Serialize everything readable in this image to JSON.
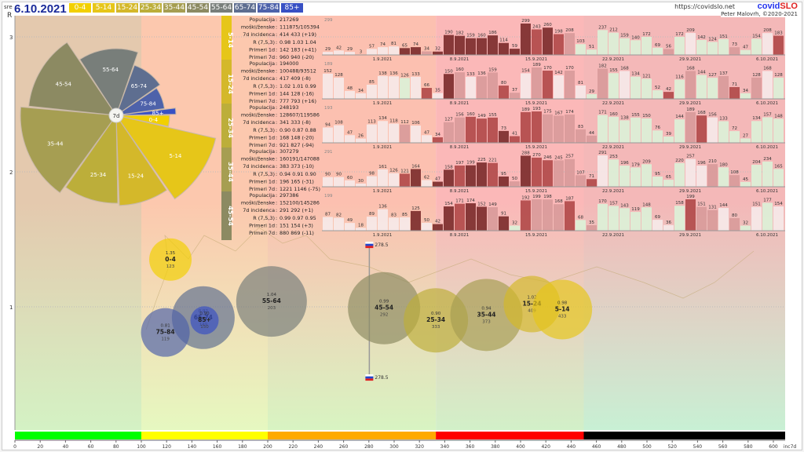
{
  "header": {
    "weekday": "sre",
    "date": "6.10.2021",
    "url": "https://covidslo.net",
    "logo_a": "covid",
    "logo_b": "SLO",
    "author": "Peter Malovrh, ©2020-2021",
    "r_axis": "R"
  },
  "age_groups": [
    {
      "label": "0-4",
      "color": "#f2d000"
    },
    {
      "label": "5-14",
      "color": "#e6c619"
    },
    {
      "label": "15-24",
      "color": "#d4b82a"
    },
    {
      "label": "25-34",
      "color": "#bcae3a"
    },
    {
      "label": "35-44",
      "color": "#a69e52"
    },
    {
      "label": "45-54",
      "color": "#8c8a62"
    },
    {
      "label": "55-64",
      "color": "#787e7a"
    },
    {
      "label": "65-74",
      "color": "#5e6e90"
    },
    {
      "label": "75-84",
      "color": "#4e62aa"
    },
    {
      "label": "85+",
      "color": "#3850c4"
    }
  ],
  "chart_data": [
    {
      "type": "bar",
      "title": "daily cases per age group",
      "date_ticks": [
        "1.9.2021",
        "8.9.2021",
        "15.9.2021",
        "22.9.2021",
        "29.9.2021",
        "6.10.2021"
      ],
      "panels": [
        {
          "group": "5-14",
          "max": "299",
          "stats": [
            [
              "Populacija",
              "217269"
            ],
            [
              "moški/ženske",
              "111875/105394"
            ],
            [
              "7d incidenca",
              "414 433 (+19)"
            ],
            [
              "R (7,5,3)",
              "0.98 1.03 1.04"
            ],
            [
              "Primeri 1d",
              "142 183 (+41)"
            ],
            [
              "Primeri 7d",
              "960 940 (-20)"
            ]
          ],
          "values": [
            29,
            42,
            29,
            3,
            57,
            74,
            81,
            65,
            74,
            34,
            32,
            190,
            182,
            159,
            160,
            186,
            114,
            59,
            299,
            243,
            260,
            198,
            208,
            103,
            51,
            237,
            212,
            159,
            140,
            172,
            69,
            56,
            172,
            209,
            142,
            124,
            151,
            73,
            47,
            154,
            208,
            183
          ]
        },
        {
          "group": "15-24",
          "max": "189",
          "stats": [
            [
              "Populacija",
              "194000"
            ],
            [
              "moški/ženske",
              "100488/93512"
            ],
            [
              "7d incidenca",
              "417 409 (-8)"
            ],
            [
              "R (7,5,3)",
              "1.02 1.01 0.99"
            ],
            [
              "Primeri 1d",
              "144 128 (-16)"
            ],
            [
              "Primeri 7d",
              "777 793 (+16)"
            ]
          ],
          "values": [
            152,
            128,
            48,
            34,
            85,
            138,
            136,
            126,
            133,
            66,
            35,
            150,
            160,
            133,
            136,
            159,
            80,
            37,
            154,
            189,
            170,
            142,
            170,
            81,
            29,
            182,
            155,
            168,
            134,
            121,
            52,
            42,
            116,
            168,
            144,
            127,
            137,
            71,
            34,
            128,
            168,
            128
          ]
        },
        {
          "group": "25-34",
          "max": "193",
          "stats": [
            [
              "Populacija",
              "248193"
            ],
            [
              "moški/ženske",
              "128607/119586"
            ],
            [
              "7d incidenca",
              "341 333 (-8)"
            ],
            [
              "R (7,5,3)",
              "0.90 0.87 0.88"
            ],
            [
              "Primeri 1d",
              "168 148 (-20)"
            ],
            [
              "Primeri 7d",
              "921 827 (-94)"
            ]
          ],
          "values": [
            94,
            108,
            47,
            26,
            113,
            134,
            118,
            112,
            106,
            47,
            34,
            127,
            156,
            160,
            149,
            155,
            73,
            41,
            189,
            193,
            175,
            167,
            174,
            83,
            44,
            171,
            160,
            138,
            155,
            150,
            76,
            39,
            144,
            189,
            168,
            156,
            133,
            72,
            27,
            134,
            157,
            148
          ]
        },
        {
          "group": "35-44",
          "max": "291",
          "stats": [
            [
              "Populacija",
              "307279"
            ],
            [
              "moški/ženske",
              "160191/147088"
            ],
            [
              "7d incidenca",
              "383 373 (-10)"
            ],
            [
              "R (7,5,3)",
              "0.94 0.91 0.90"
            ],
            [
              "Primeri 1d",
              "196 165 (-31)"
            ],
            [
              "Primeri 7d",
              "1221 1146 (-75)"
            ]
          ],
          "values": [
            90,
            90,
            60,
            30,
            98,
            161,
            126,
            121,
            164,
            62,
            47,
            158,
            197,
            199,
            225,
            221,
            95,
            50,
            288,
            270,
            246,
            245,
            257,
            107,
            71,
            291,
            253,
            196,
            179,
            209,
            95,
            65,
            220,
            257,
            196,
            210,
            180,
            108,
            45,
            204,
            234,
            165
          ]
        },
        {
          "group": "45-54",
          "max": "199",
          "stats": [
            [
              "Populacija",
              "297386"
            ],
            [
              "moški/ženske",
              "152100/145286"
            ],
            [
              "7d incidenca",
              "291 292 (+1)"
            ],
            [
              "R (7,5,3)",
              "0.99 0.97 0.95"
            ],
            [
              "Primeri 1d",
              "151 154 (+3)"
            ],
            [
              "Primeri 7d",
              "880 869 (-11)"
            ]
          ],
          "values": [
            87,
            82,
            49,
            18,
            89,
            136,
            83,
            85,
            125,
            50,
            42,
            154,
            171,
            174,
            152,
            149,
            91,
            32,
            192,
            199,
            198,
            168,
            187,
            68,
            35,
            170,
            157,
            143,
            119,
            148,
            69,
            36,
            158,
            199,
            151,
            131,
            144,
            80,
            32,
            151,
            177,
            154
          ]
        }
      ]
    },
    {
      "type": "scatter",
      "xlabel": "inc7d",
      "ylabel": "R",
      "xlim": [
        0,
        620
      ],
      "ylim": [
        0,
        3.1
      ],
      "xticks": [
        0,
        20,
        40,
        60,
        80,
        100,
        120,
        140,
        160,
        180,
        200,
        220,
        240,
        260,
        280,
        300,
        320,
        340,
        360,
        380,
        400,
        420,
        440,
        460,
        480,
        500,
        520,
        540,
        560,
        580,
        600
      ],
      "yticks": [
        1,
        2,
        3
      ],
      "zones": [
        {
          "from": 0,
          "to": 100,
          "color": "#00ff00"
        },
        {
          "from": 100,
          "to": 200,
          "color": "#ffff00"
        },
        {
          "from": 200,
          "to": 333,
          "color": "#ffaa00"
        },
        {
          "from": 333,
          "to": 450,
          "color": "#ff0000"
        },
        {
          "from": 450,
          "to": 620,
          "color": "#000000"
        }
      ],
      "slovenia": {
        "inc": 278.5,
        "label": "278.5"
      },
      "points": [
        {
          "group": "0-4",
          "r": "1.35",
          "inc": 123
        },
        {
          "group": "5-14",
          "r": "0.98",
          "inc": 433
        },
        {
          "group": "15-24",
          "r": "1.02",
          "inc": 409
        },
        {
          "group": "25-34",
          "r": "0.90",
          "inc": 333
        },
        {
          "group": "35-44",
          "r": "0.94",
          "inc": 373
        },
        {
          "group": "45-54",
          "r": "0.99",
          "inc": 292
        },
        {
          "group": "55-64",
          "r": "1.04",
          "inc": 203
        },
        {
          "group": "65-74",
          "r": "0.92",
          "inc": 149
        },
        {
          "group": "75-84",
          "r": "0.81",
          "inc": 119
        },
        {
          "group": "85+",
          "r": "0.90",
          "inc": 150
        }
      ]
    },
    {
      "type": "pie",
      "center_label": "7d",
      "slices": [
        "0-4",
        "5-14",
        "15-24",
        "25-34",
        "35-44",
        "45-54",
        "55-64",
        "65-74",
        "75-84",
        "85+"
      ]
    }
  ]
}
